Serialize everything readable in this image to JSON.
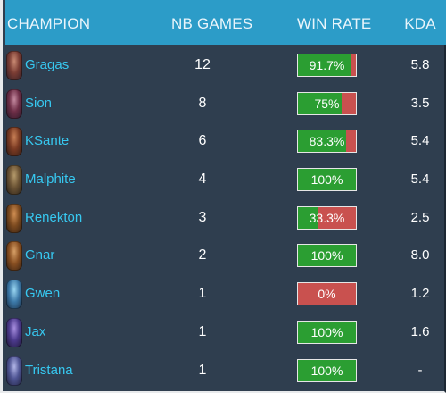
{
  "header": {
    "champion": "CHAMPION",
    "games": "NB GAMES",
    "winrate": "WIN RATE",
    "kda": "KDA"
  },
  "colors": {
    "header_bg": "#2c9cc8",
    "table_bg": "#2f3e4f",
    "champion_name": "#37c8f0",
    "win": "#2b9e32",
    "loss": "#c9514f"
  },
  "rows": [
    {
      "champion": "Gragas",
      "icon": "gragas-portrait-icon",
      "games": "12",
      "winrate_label": "91.7%",
      "winrate": 91.7,
      "kda": "5.8"
    },
    {
      "champion": "Sion",
      "icon": "sion-portrait-icon",
      "games": "8",
      "winrate_label": "75%",
      "winrate": 75,
      "kda": "3.5"
    },
    {
      "champion": "KSante",
      "icon": "ksante-portrait-icon",
      "games": "6",
      "winrate_label": "83.3%",
      "winrate": 83.3,
      "kda": "5.4"
    },
    {
      "champion": "Malphite",
      "icon": "malphite-portrait-icon",
      "games": "4",
      "winrate_label": "100%",
      "winrate": 100,
      "kda": "5.4"
    },
    {
      "champion": "Renekton",
      "icon": "renekton-portrait-icon",
      "games": "3",
      "winrate_label": "33.3%",
      "winrate": 33.3,
      "kda": "2.5"
    },
    {
      "champion": "Gnar",
      "icon": "gnar-portrait-icon",
      "games": "2",
      "winrate_label": "100%",
      "winrate": 100,
      "kda": "8.0"
    },
    {
      "champion": "Gwen",
      "icon": "gwen-portrait-icon",
      "games": "1",
      "winrate_label": "0%",
      "winrate": 0,
      "kda": "1.2"
    },
    {
      "champion": "Jax",
      "icon": "jax-portrait-icon",
      "games": "1",
      "winrate_label": "100%",
      "winrate": 100,
      "kda": "1.6"
    },
    {
      "champion": "Tristana",
      "icon": "tristana-portrait-icon",
      "games": "1",
      "winrate_label": "100%",
      "winrate": 100,
      "kda": "-"
    }
  ]
}
